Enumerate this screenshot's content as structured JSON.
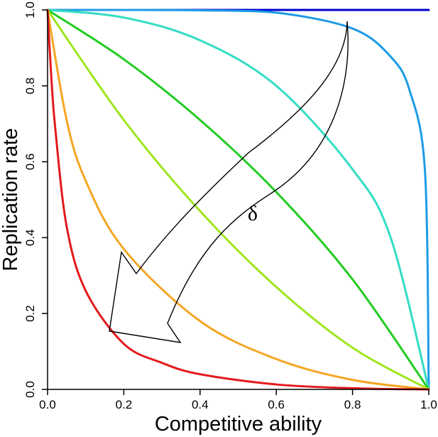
{
  "chart_data": {
    "type": "line",
    "title": "",
    "xlabel": "Competitive ability",
    "ylabel": "Replication rate",
    "xlim": [
      0,
      1
    ],
    "ylim": [
      0,
      1
    ],
    "x_ticks": [
      "0.0",
      "0.2",
      "0.4",
      "0.6",
      "0.8",
      "1.0"
    ],
    "y_ticks": [
      "0.0",
      "0.2",
      "0.4",
      "0.6",
      "0.8",
      "1.0"
    ],
    "grid": false,
    "legend": "none",
    "annotation": {
      "label": "δ",
      "description": "curved arrow pointing toward lower-left"
    },
    "series": [
      {
        "color": "#0000cd",
        "x": [
          0,
          0.2,
          0.4,
          0.6,
          0.8,
          1.0
        ],
        "y": [
          1.0,
          1.0,
          1.0,
          1.0,
          1.0,
          1.0
        ]
      },
      {
        "color": "#1e9be6",
        "x": [
          0,
          0.2,
          0.4,
          0.6,
          0.8,
          0.9,
          0.95,
          0.99,
          1.0
        ],
        "y": [
          1.0,
          1.0,
          0.999,
          0.993,
          0.951,
          0.877,
          0.787,
          0.576,
          0.0
        ]
      },
      {
        "color": "#33ddc4",
        "x": [
          0,
          0.2,
          0.4,
          0.6,
          0.8,
          0.9,
          1.0
        ],
        "y": [
          1.0,
          0.98,
          0.92,
          0.8,
          0.58,
          0.4,
          0.0
        ]
      },
      {
        "color": "#22cc22",
        "x": [
          0,
          0.2,
          0.4,
          0.6,
          0.8,
          1.0
        ],
        "y": [
          1.0,
          0.87,
          0.71,
          0.52,
          0.29,
          0.0
        ]
      },
      {
        "color": "#9de61e",
        "x": [
          0,
          0.2,
          0.4,
          0.6,
          0.8,
          1.0
        ],
        "y": [
          1.0,
          0.71,
          0.47,
          0.27,
          0.11,
          0.0
        ]
      },
      {
        "color": "#f5a623",
        "x": [
          0,
          0.05,
          0.1,
          0.2,
          0.4,
          0.6,
          0.8,
          1.0
        ],
        "y": [
          1.0,
          0.71,
          0.55,
          0.37,
          0.18,
          0.08,
          0.025,
          0.0
        ]
      },
      {
        "color": "#e31a1c",
        "x": [
          0,
          0.01,
          0.02,
          0.05,
          0.1,
          0.2,
          0.3,
          0.4,
          0.6,
          0.8,
          1.0
        ],
        "y": [
          1.0,
          0.82,
          0.69,
          0.43,
          0.26,
          0.12,
          0.07,
          0.04,
          0.013,
          0.003,
          0.0
        ]
      }
    ]
  }
}
